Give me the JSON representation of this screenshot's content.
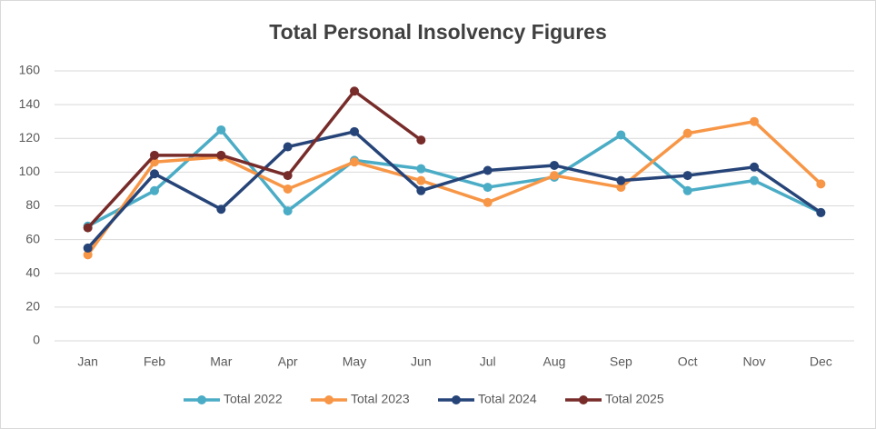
{
  "chart_data": {
    "type": "line",
    "title": "Total Personal Insolvency Figures",
    "categories": [
      "Jan",
      "Feb",
      "Mar",
      "Apr",
      "May",
      "Jun",
      "Jul",
      "Aug",
      "Sep",
      "Oct",
      "Nov",
      "Dec"
    ],
    "series": [
      {
        "name": "Total 2022",
        "color": "#4bacc6",
        "values": [
          68,
          89,
          125,
          77,
          107,
          102,
          91,
          97,
          122,
          89,
          95,
          76
        ]
      },
      {
        "name": "Total 2023",
        "color": "#f79646",
        "values": [
          51,
          106,
          109,
          90,
          106,
          95,
          82,
          98,
          91,
          123,
          130,
          93
        ]
      },
      {
        "name": "Total 2024",
        "color": "#264478",
        "values": [
          55,
          99,
          78,
          115,
          124,
          89,
          101,
          104,
          95,
          98,
          103,
          76
        ]
      },
      {
        "name": "Total 2025",
        "color": "#772c2a",
        "values": [
          67,
          110,
          110,
          98,
          148,
          119,
          null,
          null,
          null,
          null,
          null,
          null
        ]
      }
    ],
    "ylim": [
      0,
      160
    ],
    "yticks": [
      0,
      20,
      40,
      60,
      80,
      100,
      120,
      140,
      160
    ],
    "grid": true,
    "legend": "bottom"
  }
}
